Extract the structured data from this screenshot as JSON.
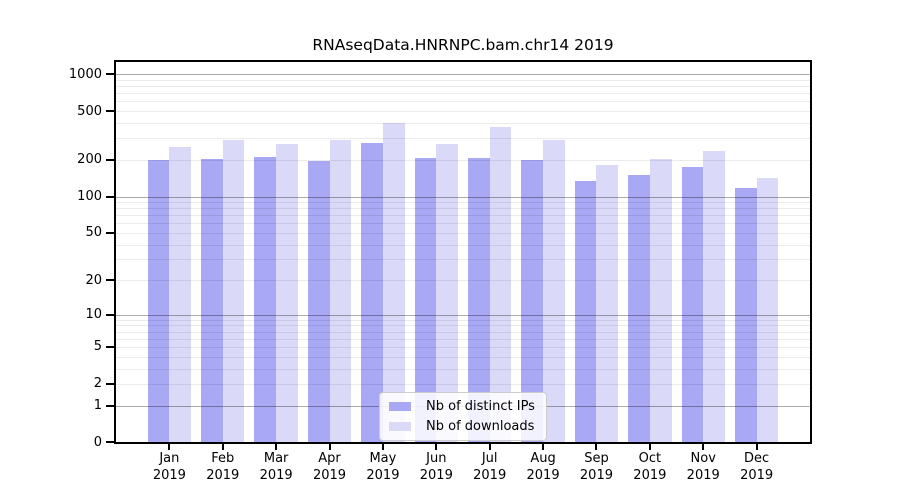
{
  "title": "RNAseqData.HNRNPC.bam.chr14 2019",
  "chart_data": {
    "type": "bar",
    "categories": [
      "Jan 2019",
      "Feb 2019",
      "Mar 2019",
      "Apr 2019",
      "May 2019",
      "Jun 2019",
      "Jul 2019",
      "Aug 2019",
      "Sep 2019",
      "Oct 2019",
      "Nov 2019",
      "Dec 2019"
    ],
    "months": [
      "Jan",
      "Feb",
      "Mar",
      "Apr",
      "May",
      "Jun",
      "Jul",
      "Aug",
      "Sep",
      "Oct",
      "Nov",
      "Dec"
    ],
    "year": "2019",
    "series": [
      {
        "name": "Nb of distinct IPs",
        "color": "#a8a8f4",
        "values": [
          200,
          205,
          212,
          197,
          277,
          206,
          209,
          200,
          134,
          150,
          174,
          117
        ]
      },
      {
        "name": "Nb of downloads",
        "color": "#dadaf8",
        "values": [
          255,
          292,
          272,
          289,
          402,
          272,
          371,
          292,
          183,
          202,
          237,
          143
        ]
      }
    ],
    "title": "RNAseqData.HNRNPC.bam.chr14 2019",
    "xlabel": "",
    "ylabel": "",
    "yscale": "log1p",
    "ylim": [
      0,
      1265
    ],
    "yticks": [
      1000,
      500,
      200,
      100,
      50,
      20,
      10,
      5,
      2,
      1,
      0
    ],
    "grid": {
      "major": [
        1,
        10,
        100,
        1000
      ],
      "minor": [
        2,
        3,
        4,
        5,
        6,
        7,
        8,
        9,
        20,
        30,
        40,
        50,
        60,
        70,
        80,
        90,
        200,
        300,
        400,
        500,
        600,
        700,
        800,
        900
      ]
    },
    "legend_position": "bottom-center",
    "legend": [
      "Nb of distinct IPs",
      "Nb of downloads"
    ]
  }
}
